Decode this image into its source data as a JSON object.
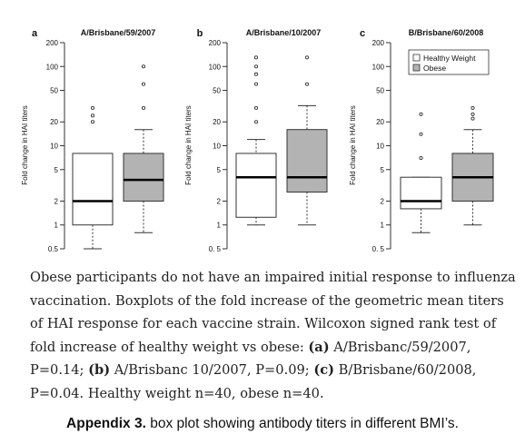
{
  "chart_data": [
    {
      "type": "box",
      "panel_label": "a",
      "title": "A/Brisbane/59/2007",
      "ylabel": "Fold change in HAI titers",
      "y_scale": "log",
      "ylim": [
        0.5,
        200
      ],
      "y_ticks": [
        "0.5",
        "1",
        "2",
        "5",
        "10",
        "20",
        "50",
        "100",
        "200"
      ],
      "tick_values": [
        0.5,
        1,
        2,
        5,
        10,
        20,
        50,
        100,
        200
      ],
      "grid": false,
      "groups": [
        {
          "name": "Healthy Weight",
          "fill": "#ffffff",
          "whisker_low": 0.5,
          "q1": 1,
          "median": 2,
          "q3": 8,
          "whisker_high": 8,
          "outliers": [
            20,
            24,
            30
          ]
        },
        {
          "name": "Obese",
          "fill": "#b3b3b3",
          "whisker_low": 0.8,
          "q1": 2,
          "median": 3.7,
          "q3": 8,
          "whisker_high": 16,
          "outliers": [
            30,
            60,
            100
          ]
        }
      ]
    },
    {
      "type": "box",
      "panel_label": "b",
      "title": "A/Brisbane/10/2007",
      "ylabel": "Fold change in HAI titers",
      "y_scale": "log",
      "ylim": [
        0.5,
        200
      ],
      "y_ticks": [
        "0. 5",
        "1",
        "2",
        "5",
        "10",
        "20",
        "50",
        "100",
        "200"
      ],
      "tick_values": [
        0.5,
        1,
        2,
        5,
        10,
        20,
        50,
        100,
        200
      ],
      "grid": false,
      "groups": [
        {
          "name": "Healthy Weight",
          "fill": "#ffffff",
          "whisker_low": 1,
          "q1": 1.25,
          "median": 4,
          "q3": 8,
          "whisker_high": 12,
          "outliers": [
            20,
            30,
            60,
            80,
            100,
            130
          ]
        },
        {
          "name": "Obese",
          "fill": "#b3b3b3",
          "whisker_low": 1,
          "q1": 2.6,
          "median": 4,
          "q3": 16,
          "whisker_high": 32,
          "outliers": [
            60,
            130
          ]
        }
      ]
    },
    {
      "type": "box",
      "panel_label": "c",
      "title": "B/Brisbane/60/2008",
      "ylabel": "Fold change in HAI titers",
      "y_scale": "log",
      "ylim": [
        0.5,
        200
      ],
      "y_ticks": [
        "0. 5",
        "1",
        "2",
        "5",
        "10",
        "20",
        "50",
        "100",
        "200"
      ],
      "tick_values": [
        0.5,
        1,
        2,
        5,
        10,
        20,
        50,
        100,
        200
      ],
      "grid": false,
      "legend": {
        "placement": "top-right",
        "entries": [
          "Healthy Weight",
          "Obese"
        ]
      },
      "groups": [
        {
          "name": "Healthy Weight",
          "fill": "#ffffff",
          "whisker_low": 0.8,
          "q1": 1.6,
          "median": 2,
          "q3": 4,
          "whisker_high": 4,
          "outliers": [
            7,
            14,
            25
          ]
        },
        {
          "name": "Obese",
          "fill": "#b3b3b3",
          "whisker_low": 1,
          "q1": 2,
          "median": 4,
          "q3": 8,
          "whisker_high": 16,
          "outliers": [
            22,
            25,
            30
          ]
        }
      ]
    }
  ],
  "caption": {
    "main": "Obese participants do not have an impaired initial response to influenza vaccination. Boxplots of the fold increase of the geometric mean titers of HAI response for each vaccine strain. Wilcoxon signed rank test of fold increase of healthy weight vs obese: ",
    "a_label": "(a)",
    "a_text": " A/Brisbanc/59/2007, P=0.14; ",
    "b_label": "(b)",
    "b_text": " A/Brisbanc 10/2007, P=0.09; ",
    "c_label": "(c)",
    "c_text": " B/Brisbane/60/2008, P=0.04. Healthy weight n=40, obese n=40."
  },
  "appendix": {
    "label": "Appendix 3.",
    "text": " box plot showing antibody titers in different BMI’s."
  }
}
